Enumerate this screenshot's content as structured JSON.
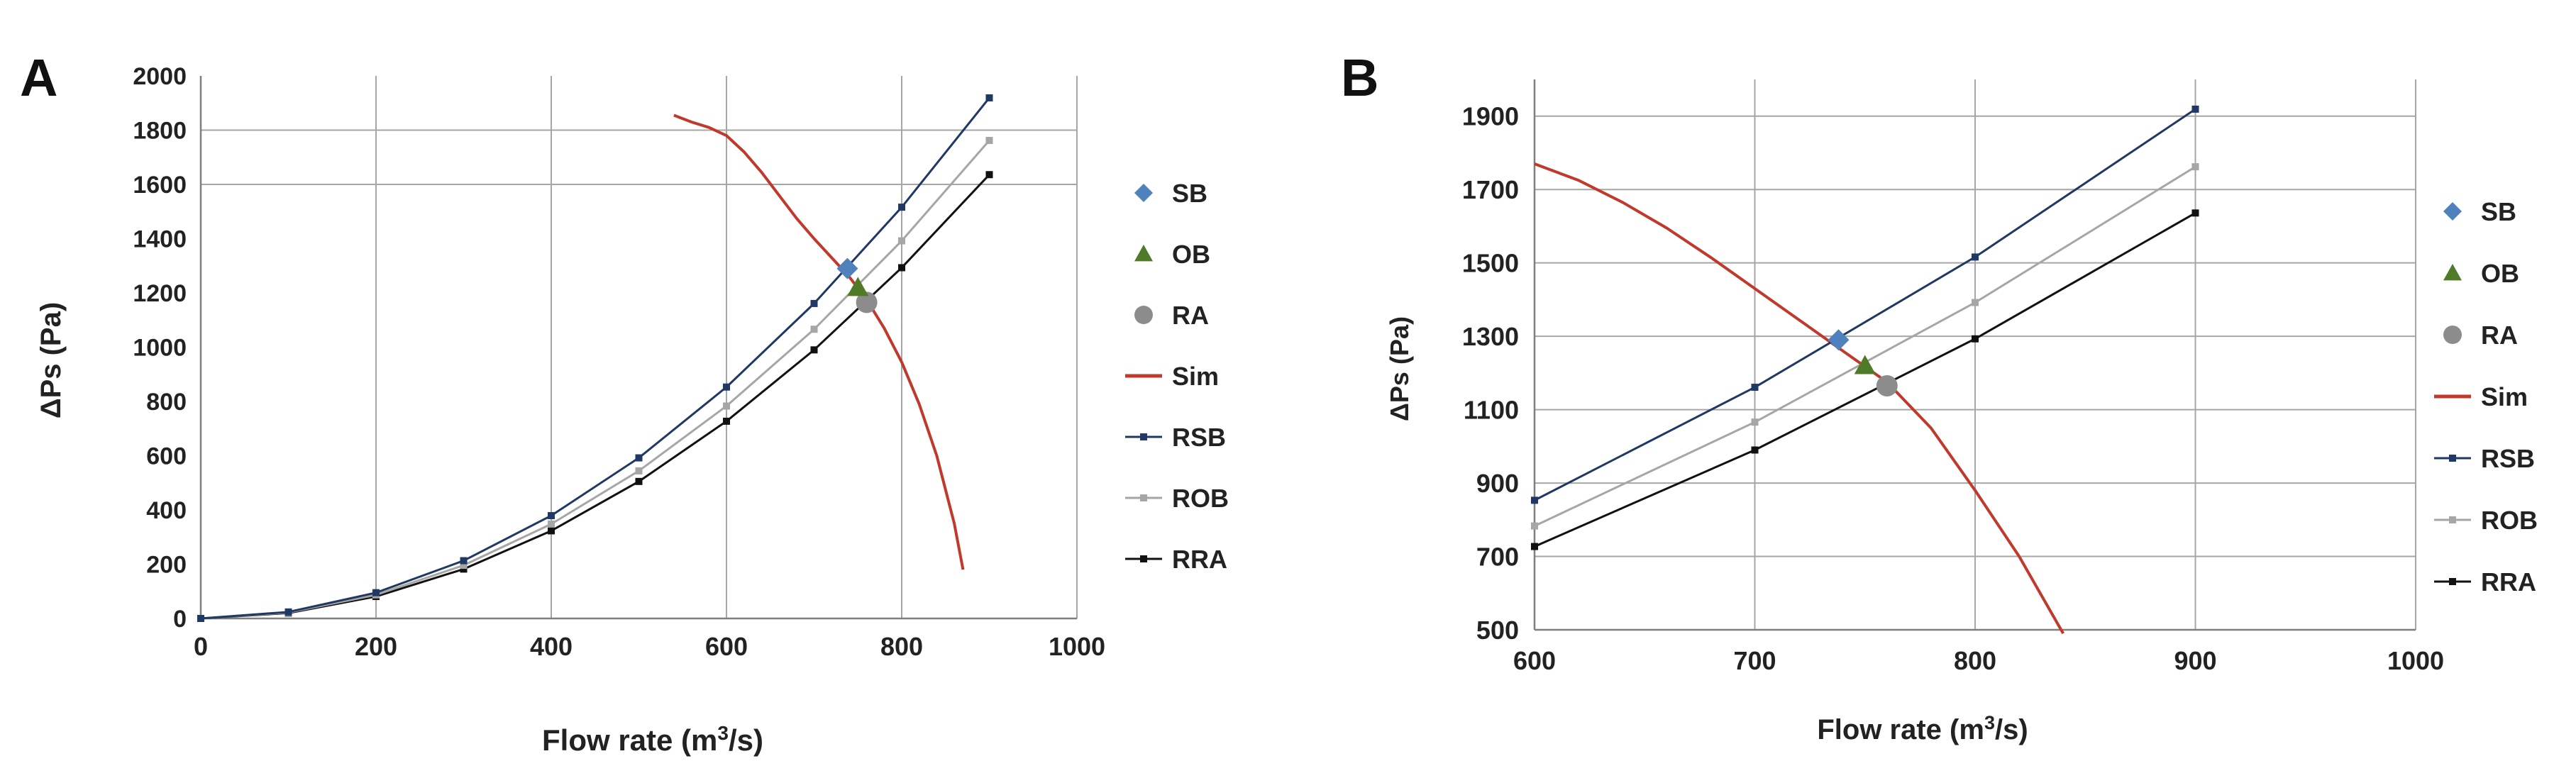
{
  "figure": {
    "colors": {
      "background": "#ffffff",
      "grid": "#a6a6a6",
      "axis_text": "#222222",
      "SB": "#4f81bd",
      "OB": "#4f7a28",
      "RA": "#8c8c8c",
      "Sim": "#c0392b",
      "RSB": "#1f3864",
      "ROB": "#a6a6a6",
      "RRA": "#111111"
    }
  },
  "chart_data": [
    {
      "panel_label": "A",
      "type": "line",
      "xlabel_pre": "Flow rate (m",
      "xlabel_sup": "3",
      "xlabel_post": "/s)",
      "ylabel": "ΔPs (Pa)",
      "xlim": [
        0,
        1000
      ],
      "ylim": [
        0,
        2000
      ],
      "xticks": [
        "0",
        "200",
        "400",
        "600",
        "800",
        "1000"
      ],
      "yticks": [
        "0",
        "200",
        "400",
        "600",
        "800",
        "1000",
        "1200",
        "1400",
        "1600",
        "1800",
        "2000"
      ],
      "x_tick_values": [
        0,
        200,
        400,
        600,
        800,
        1000
      ],
      "y_tick_values": [
        0,
        200,
        400,
        600,
        800,
        1000,
        1200,
        1400,
        1600,
        1800,
        2000
      ],
      "grid": "vertical at x ticks; horizontal at 1600 and 1800",
      "legend": [
        "SB",
        "OB",
        "RA",
        "Sim",
        "RSB",
        "ROB",
        "RRA"
      ],
      "legend_position": "right",
      "series": [
        {
          "name": "SB",
          "kind": "marker",
          "marker": "diamond",
          "x": [
            738
          ],
          "y": [
            1290
          ]
        },
        {
          "name": "OB",
          "kind": "marker",
          "marker": "triangle",
          "x": [
            750
          ],
          "y": [
            1220
          ]
        },
        {
          "name": "RA",
          "kind": "marker",
          "marker": "circle",
          "x": [
            760
          ],
          "y": [
            1165
          ]
        },
        {
          "name": "Sim",
          "kind": "curve",
          "x": [
            540,
            560,
            580,
            600,
            620,
            640,
            660,
            680,
            700,
            720,
            740,
            760,
            780,
            800,
            820,
            840,
            860,
            870
          ],
          "y": [
            1855,
            1830,
            1810,
            1780,
            1720,
            1645,
            1560,
            1475,
            1400,
            1330,
            1260,
            1175,
            1070,
            945,
            790,
            600,
            350,
            180
          ]
        },
        {
          "name": "RSB",
          "kind": "line-marker",
          "x": [
            0,
            100,
            200,
            300,
            400,
            500,
            600,
            700,
            800,
            900
          ],
          "y": [
            0,
            24,
            95,
            213,
            379,
            592,
            853,
            1161,
            1516,
            1919
          ]
        },
        {
          "name": "ROB",
          "kind": "line-marker",
          "x": [
            0,
            100,
            200,
            300,
            400,
            500,
            600,
            700,
            800,
            900
          ],
          "y": [
            0,
            22,
            87,
            196,
            348,
            544,
            783,
            1066,
            1392,
            1762
          ]
        },
        {
          "name": "RRA",
          "kind": "line-marker",
          "x": [
            0,
            100,
            200,
            300,
            400,
            500,
            600,
            700,
            800,
            900
          ],
          "y": [
            0,
            20,
            81,
            182,
            323,
            505,
            727,
            990,
            1293,
            1636
          ]
        }
      ]
    },
    {
      "panel_label": "B",
      "type": "line",
      "xlabel_pre": "Flow rate (m",
      "xlabel_sup": "3",
      "xlabel_post": "/s)",
      "ylabel": "ΔPs (Pa)",
      "xlim": [
        600,
        1000
      ],
      "ylim": [
        500,
        2000
      ],
      "xticks": [
        "600",
        "700",
        "800",
        "900",
        "1000"
      ],
      "yticks": [
        "500",
        "700",
        "900",
        "1100",
        "1300",
        "1500",
        "1700",
        "1900"
      ],
      "x_tick_values": [
        600,
        700,
        800,
        900,
        1000
      ],
      "y_tick_values": [
        500,
        700,
        900,
        1100,
        1300,
        1500,
        1700,
        1900
      ],
      "grid": "vertical at x ticks; horizontal at y ticks",
      "legend": [
        "SB",
        "OB",
        "RA",
        "Sim",
        "RSB",
        "ROB",
        "RRA"
      ],
      "legend_position": "right",
      "series": [
        {
          "name": "SB",
          "kind": "marker",
          "marker": "diamond",
          "x": [
            738
          ],
          "y": [
            1290
          ]
        },
        {
          "name": "OB",
          "kind": "marker",
          "marker": "triangle",
          "x": [
            750
          ],
          "y": [
            1220
          ]
        },
        {
          "name": "RA",
          "kind": "marker",
          "marker": "circle",
          "x": [
            760
          ],
          "y": [
            1165
          ]
        },
        {
          "name": "Sim",
          "kind": "curve",
          "x": [
            600,
            620,
            640,
            660,
            680,
            700,
            720,
            740,
            760,
            780,
            800,
            820,
            840
          ],
          "y": [
            1770,
            1725,
            1665,
            1595,
            1515,
            1430,
            1345,
            1260,
            1175,
            1050,
            880,
            700,
            490
          ]
        },
        {
          "name": "RSB",
          "kind": "line-marker",
          "x": [
            600,
            700,
            800,
            900
          ],
          "y": [
            853,
            1161,
            1516,
            1919
          ]
        },
        {
          "name": "ROB",
          "kind": "line-marker",
          "x": [
            600,
            700,
            800,
            900
          ],
          "y": [
            783,
            1066,
            1392,
            1762
          ]
        },
        {
          "name": "RRA",
          "kind": "line-marker",
          "x": [
            600,
            700,
            800,
            900
          ],
          "y": [
            727,
            990,
            1293,
            1636
          ]
        }
      ]
    }
  ]
}
